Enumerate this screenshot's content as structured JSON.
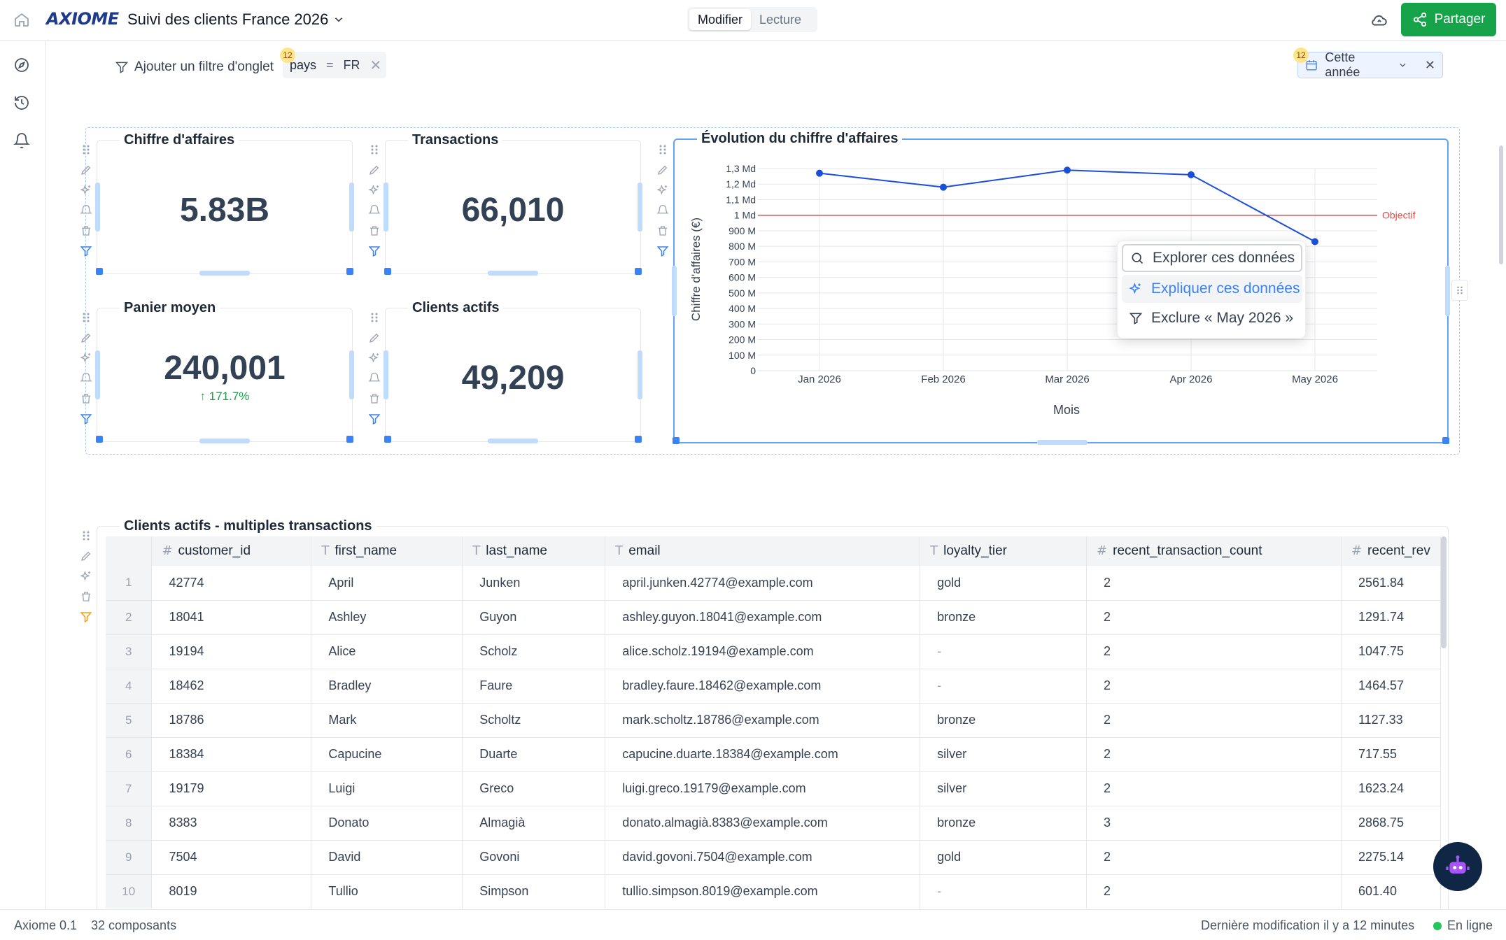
{
  "app": {
    "logo": "AXIOME",
    "title": "Suivi des clients France 2026"
  },
  "modes": {
    "edit": "Modifier",
    "read": "Lecture"
  },
  "share_label": "Partager",
  "filters": {
    "add_label": "Ajouter un filtre d'onglet",
    "country": {
      "field": "pays",
      "op": "=",
      "value": "FR",
      "badge": "12"
    },
    "date": {
      "label": "Cette année",
      "badge": "12"
    }
  },
  "kpis": {
    "revenue": {
      "title": "Chiffre d'affaires",
      "value": "5.83B"
    },
    "transactions": {
      "title": "Transactions",
      "value": "66,010"
    },
    "basket": {
      "title": "Panier moyen",
      "value": "240,001",
      "delta": "↑ 171.7%"
    },
    "active": {
      "title": "Clients actifs",
      "value": "49,209"
    }
  },
  "chart_data": {
    "type": "line",
    "title": "Évolution du chiffre d'affaires",
    "xlabel": "Mois",
    "ylabel": "Chiffre d'affaires (€)",
    "categories": [
      "Jan 2026",
      "Feb 2026",
      "Mar 2026",
      "Apr 2026",
      "May 2026"
    ],
    "series": [
      {
        "values": [
          1270000000,
          1180000000,
          1290000000,
          1260000000,
          830000000
        ]
      }
    ],
    "ylim": [
      0,
      1300000000
    ],
    "yticks": [
      0,
      100000000,
      200000000,
      300000000,
      400000000,
      500000000,
      600000000,
      700000000,
      800000000,
      900000000,
      1000000000,
      1100000000,
      1200000000,
      1300000000
    ],
    "ytick_labels": [
      "0",
      "100 M",
      "200 M",
      "300 M",
      "400 M",
      "500 M",
      "600 M",
      "700 M",
      "800 M",
      "900 M",
      "1 Md",
      "1,1 Md",
      "1,2 Md",
      "1,3 Md"
    ],
    "reference_line": {
      "value": 1000000000,
      "label": "Objectif",
      "color": "#ef4444"
    },
    "line_color": "#1d4ed8",
    "grid": true
  },
  "context_menu": {
    "explore": "Explorer ces données",
    "explain": "Expliquer ces données",
    "exclude": "Exclure « May 2026 »"
  },
  "table": {
    "title": "Clients actifs - multiples transactions",
    "columns": [
      {
        "type": "#",
        "name": "customer_id"
      },
      {
        "type": "T",
        "name": "first_name"
      },
      {
        "type": "T",
        "name": "last_name"
      },
      {
        "type": "T",
        "name": "email"
      },
      {
        "type": "T",
        "name": "loyalty_tier"
      },
      {
        "type": "#",
        "name": "recent_transaction_count"
      },
      {
        "type": "#",
        "name": "recent_rev"
      }
    ],
    "rows": [
      [
        "1",
        "42774",
        "April",
        "Junken",
        "april.junken.42774@example.com",
        "gold",
        "2",
        "2561.84"
      ],
      [
        "2",
        "18041",
        "Ashley",
        "Guyon",
        "ashley.guyon.18041@example.com",
        "bronze",
        "2",
        "1291.74"
      ],
      [
        "3",
        "19194",
        "Alice",
        "Scholz",
        "alice.scholz.19194@example.com",
        "-",
        "2",
        "1047.75"
      ],
      [
        "4",
        "18462",
        "Bradley",
        "Faure",
        "bradley.faure.18462@example.com",
        "-",
        "2",
        "1464.57"
      ],
      [
        "5",
        "18786",
        "Mark",
        "Scholtz",
        "mark.scholtz.18786@example.com",
        "bronze",
        "2",
        "1127.33"
      ],
      [
        "6",
        "18384",
        "Capucine",
        "Duarte",
        "capucine.duarte.18384@example.com",
        "silver",
        "2",
        "717.55"
      ],
      [
        "7",
        "19179",
        "Luigi",
        "Greco",
        "luigi.greco.19179@example.com",
        "silver",
        "2",
        "1623.24"
      ],
      [
        "8",
        "8383",
        "Donato",
        "Almagià",
        "donato.almagià.8383@example.com",
        "bronze",
        "3",
        "2868.75"
      ],
      [
        "9",
        "7504",
        "David",
        "Govoni",
        "david.govoni.7504@example.com",
        "gold",
        "2",
        "2275.14"
      ],
      [
        "10",
        "8019",
        "Tullio",
        "Simpson",
        "tullio.simpson.8019@example.com",
        "-",
        "2",
        "601.40"
      ]
    ]
  },
  "status": {
    "version": "Axiome 0.1",
    "components": "32 composants",
    "modified": "Dernière modification il y a 12 minutes",
    "online": "En ligne"
  }
}
